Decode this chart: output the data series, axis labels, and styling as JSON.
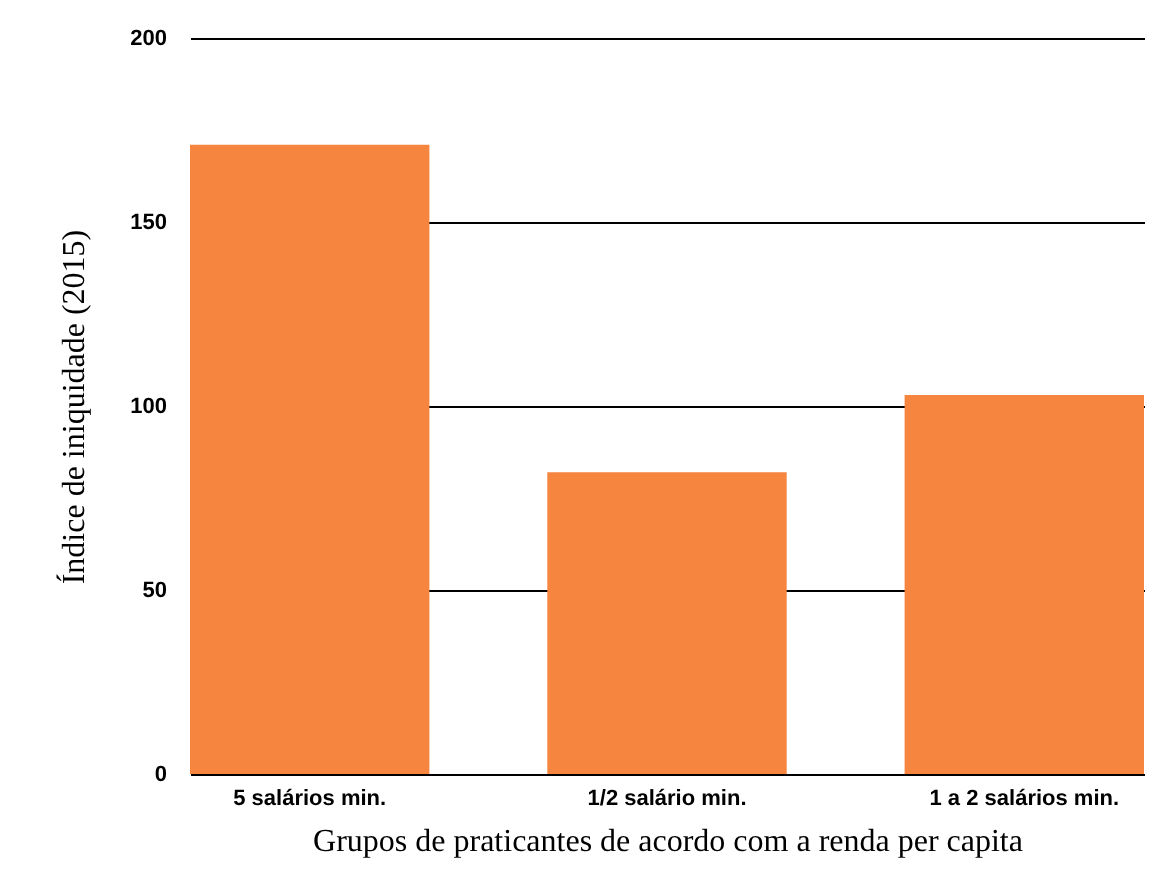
{
  "chart_data": {
    "type": "bar",
    "xlabel": "Grupos de praticantes de acordo com a renda per capita",
    "ylabel": "Índice de iniquidade (2015)",
    "categories": [
      "5 salários min.",
      "1/2 salário min.",
      "1 a 2 salários min."
    ],
    "values": [
      171,
      82,
      103
    ],
    "color": "#f5853f",
    "ylim": [
      0,
      200
    ],
    "yticks": [
      0,
      50,
      100,
      150,
      200
    ],
    "grid": "y"
  }
}
